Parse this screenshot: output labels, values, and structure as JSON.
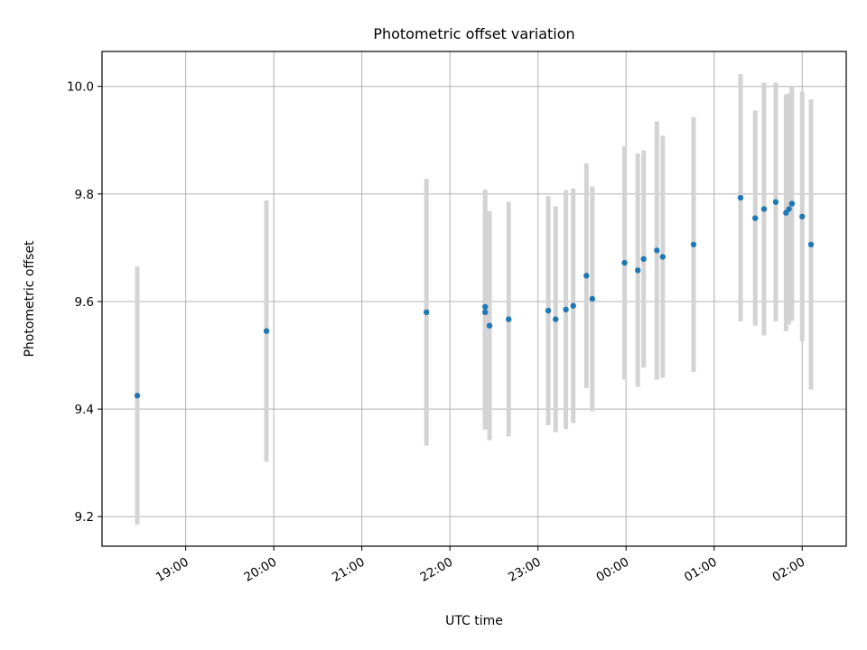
{
  "chart_data": {
    "type": "scatter",
    "title": "Photometric offset variation",
    "xlabel": "UTC time",
    "ylabel": "Photometric offset",
    "x_tick_labels": [
      "19:00",
      "20:00",
      "21:00",
      "22:00",
      "23:00",
      "00:00",
      "01:00",
      "02:00"
    ],
    "y_tick_labels": [
      "9.2",
      "9.4",
      "9.6",
      "9.8",
      "10.0"
    ],
    "xlim": [
      "18:03",
      "02:30"
    ],
    "ylim": [
      9.145,
      10.065
    ],
    "grid": true,
    "colors": {
      "points": "#1f77b4",
      "errorbars": "#d3d3d3",
      "grid": "#b0b0b0"
    },
    "points": [
      {
        "time": "18:27",
        "y": 9.425,
        "yerr": 0.24
      },
      {
        "time": "19:55",
        "y": 9.545,
        "yerr": 0.243
      },
      {
        "time": "21:44",
        "y": 9.58,
        "yerr": 0.248
      },
      {
        "time": "22:24",
        "y": 9.59,
        "yerr": 0.218
      },
      {
        "time": "22:24",
        "y": 9.58,
        "yerr": 0.218
      },
      {
        "time": "22:27",
        "y": 9.555,
        "yerr": 0.213
      },
      {
        "time": "22:40",
        "y": 9.567,
        "yerr": 0.218
      },
      {
        "time": "23:07",
        "y": 9.583,
        "yerr": 0.213
      },
      {
        "time": "23:12",
        "y": 9.567,
        "yerr": 0.21
      },
      {
        "time": "23:19",
        "y": 9.585,
        "yerr": 0.222
      },
      {
        "time": "23:24",
        "y": 9.592,
        "yerr": 0.218
      },
      {
        "time": "23:33",
        "y": 9.648,
        "yerr": 0.209
      },
      {
        "time": "23:37",
        "y": 9.605,
        "yerr": 0.209
      },
      {
        "time": "23:59",
        "y": 9.672,
        "yerr": 0.217
      },
      {
        "time": "00:08",
        "y": 9.658,
        "yerr": 0.217
      },
      {
        "time": "00:12",
        "y": 9.679,
        "yerr": 0.202
      },
      {
        "time": "00:21",
        "y": 9.695,
        "yerr": 0.24
      },
      {
        "time": "00:25",
        "y": 9.683,
        "yerr": 0.225
      },
      {
        "time": "00:46",
        "y": 9.706,
        "yerr": 0.237
      },
      {
        "time": "01:18",
        "y": 9.793,
        "yerr": 0.23
      },
      {
        "time": "01:28",
        "y": 9.755,
        "yerr": 0.2
      },
      {
        "time": "01:34",
        "y": 9.772,
        "yerr": 0.235
      },
      {
        "time": "01:42",
        "y": 9.785,
        "yerr": 0.222
      },
      {
        "time": "01:49",
        "y": 9.765,
        "yerr": 0.22
      },
      {
        "time": "01:51",
        "y": 9.772,
        "yerr": 0.215
      },
      {
        "time": "01:53",
        "y": 9.782,
        "yerr": 0.218
      },
      {
        "time": "02:00",
        "y": 9.758,
        "yerr": 0.232
      },
      {
        "time": "02:06",
        "y": 9.706,
        "yerr": 0.27
      }
    ]
  }
}
